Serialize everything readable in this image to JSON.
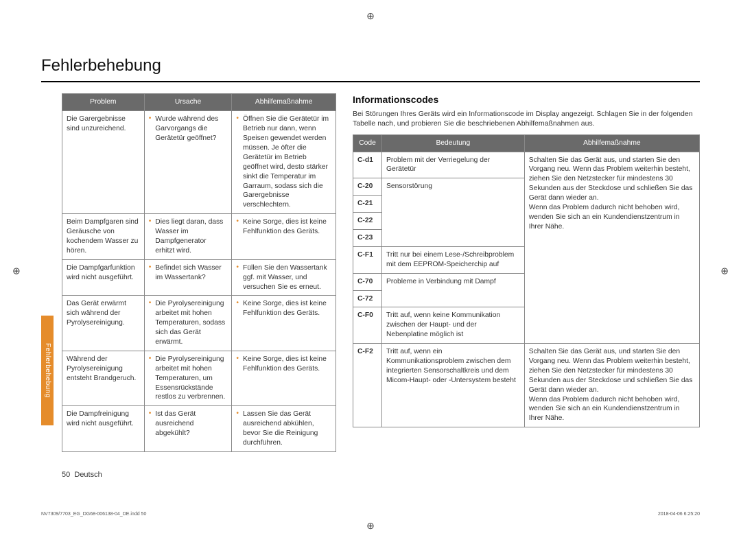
{
  "title": "Fehlerbehebung",
  "side_tab": "Fehlerbehebung",
  "footer": {
    "page": "50",
    "lang": "Deutsch"
  },
  "imprint_left": "NV7309/7703_EG_DG68-006138-04_DE.indd   50",
  "imprint_right": "2018-04-06    6:25:20",
  "reg_mark": "⊕",
  "table1": {
    "headers": {
      "problem": "Problem",
      "cause": "Ursache",
      "remedy": "Abhilfemaßnahme"
    },
    "rows": [
      {
        "problem": "Die Garergebnisse sind unzureichend.",
        "cause": "Wurde während des Garvorgangs die Gerätetür geöffnet?",
        "remedy": "Öffnen Sie die Gerätetür im Betrieb nur dann, wenn Speisen gewendet werden müssen. Je öfter die Gerätetür im Betrieb geöffnet wird, desto stärker sinkt die Temperatur im Garraum, sodass sich die Garergebnisse verschlechtern."
      },
      {
        "problem": "Beim Dampfgaren sind Geräusche von kochendem Wasser zu hören.",
        "cause": "Dies liegt daran, dass Wasser im Dampfgenerator erhitzt wird.",
        "remedy": "Keine Sorge, dies ist keine Fehlfunktion des Geräts."
      },
      {
        "problem": "Die Dampfgarfunktion wird nicht ausgeführt.",
        "cause": "Befindet sich Wasser im Wassertank?",
        "remedy": "Füllen Sie den Wassertank ggf. mit Wasser, und versuchen Sie es erneut."
      },
      {
        "problem": "Das Gerät erwärmt sich während der Pyrolysereinigung.",
        "cause": "Die Pyrolysereinigung arbeitet mit hohen Temperaturen, sodass sich das Gerät erwärmt.",
        "remedy": "Keine Sorge, dies ist keine Fehlfunktion des Geräts."
      },
      {
        "problem": "Während der Pyrolysereinigung entsteht Brandgeruch.",
        "cause": "Die Pyrolysereinigung arbeitet mit hohen Temperaturen, um Essensrückstände restlos zu verbrennen.",
        "remedy": "Keine Sorge, dies ist keine Fehlfunktion des Geräts."
      },
      {
        "problem": "Die Dampfreinigung wird nicht ausgeführt.",
        "cause": "Ist das Gerät ausreichend abgekühlt?",
        "remedy": "Lassen Sie das Gerät ausreichend abkühlen, bevor Sie die Reinigung durchführen."
      }
    ]
  },
  "info": {
    "heading": "Informationscodes",
    "intro": "Bei Störungen Ihres Geräts wird ein Informationscode im Display angezeigt. Schlagen Sie in der folgenden Tabelle nach, und probieren Sie die beschriebenen Abhilfemaßnahmen aus.",
    "headers": {
      "code": "Code",
      "meaning": "Bedeutung",
      "remedy": "Abhilfemaßnahme"
    },
    "codes": {
      "cd1": "C-d1",
      "c20": "C-20",
      "c21": "C-21",
      "c22": "C-22",
      "c23": "C-23",
      "cf1": "C-F1",
      "c70": "C-70",
      "c72": "C-72",
      "cf0": "C-F0",
      "cf2": "C-F2"
    },
    "meanings": {
      "cd1": "Problem mit der Verriegelung der Gerätetür",
      "sensor": "Sensorstörung",
      "cf1": "Tritt nur bei einem Lese-/Schreibproblem mit dem EEPROM-Speicherchip auf",
      "steam": "Probleme in Verbindung mit Dampf",
      "cf0": "Tritt auf, wenn keine Kommunikation zwischen der Haupt- und der Nebenplatine möglich ist",
      "cf2": "Tritt auf, wenn ein Kommunikationsproblem zwischen dem integrierten Sensorschaltkreis und dem Micom-Haupt- oder -Untersystem besteht"
    },
    "remedies": {
      "group1": "Schalten Sie das Gerät aus, und starten Sie den Vorgang neu. Wenn das Problem weiterhin besteht, ziehen Sie den Netzstecker für mindestens 30 Sekunden aus der Steckdose und schließen Sie das Gerät dann wieder an.\nWenn das Problem dadurch nicht behoben wird, wenden Sie sich an ein Kundendienstzentrum in Ihrer Nähe.",
      "group2": "Schalten Sie das Gerät aus, und starten Sie den Vorgang neu. Wenn das Problem weiterhin besteht, ziehen Sie den Netzstecker für mindestens 30 Sekunden aus der Steckdose und schließen Sie das Gerät dann wieder an.\nWenn das Problem dadurch nicht behoben wird, wenden Sie sich an ein Kundendienstzentrum in Ihrer Nähe."
    }
  }
}
